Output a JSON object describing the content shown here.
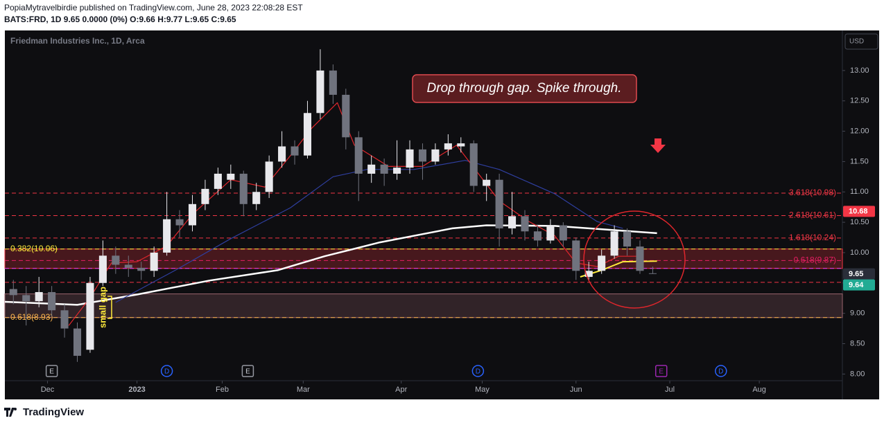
{
  "header": {
    "byline": "PopiaMytravelbirdie published on TradingView.com, June 28, 2023 22:08:28 EST",
    "symbol_line": "BATS:FRD, 1D 9.65 0.0000 (0%) O:9.66 H:9.77 L:9.65 C:9.65"
  },
  "footer": {
    "brand": "TradingView"
  },
  "chart_data": {
    "type": "candlestick",
    "title": "Friedman Industries Inc., 1D, Arca",
    "currency": "USD",
    "x": [
      -8,
      -5,
      -2,
      1,
      4,
      7,
      10,
      13,
      16,
      19,
      22,
      25,
      28,
      31,
      34,
      37,
      40,
      43,
      46,
      49,
      52,
      55,
      58,
      61,
      64,
      67,
      70,
      73,
      76,
      79,
      82,
      85,
      88,
      91,
      94,
      97,
      100,
      103,
      106,
      109,
      112,
      115,
      118,
      121,
      124,
      127,
      130,
      133,
      136,
      139,
      142
    ],
    "open": [
      9.4,
      9.3,
      9.2,
      9.35,
      9.05,
      8.75,
      8.4,
      9.5,
      9.95,
      9.8,
      9.75,
      9.7,
      10.0,
      10.55,
      10.45,
      10.8,
      11.05,
      11.2,
      11.3,
      10.8,
      11.0,
      11.5,
      11.75,
      11.6,
      12.3,
      13.0,
      12.6,
      11.9,
      11.3,
      11.45,
      11.3,
      11.4,
      11.7,
      11.5,
      11.7,
      11.75,
      11.8,
      11.1,
      11.2,
      10.4,
      10.6,
      10.35,
      10.2,
      10.45,
      10.2,
      9.6,
      9.7,
      9.95,
      10.35,
      10.1,
      9.66
    ],
    "high": [
      9.55,
      9.45,
      9.6,
      9.45,
      9.15,
      8.85,
      9.6,
      10.2,
      10.1,
      9.95,
      9.85,
      10.1,
      11.0,
      10.7,
      10.95,
      11.2,
      11.4,
      11.45,
      11.35,
      11.15,
      11.6,
      12.0,
      11.85,
      12.5,
      13.35,
      13.1,
      12.7,
      12.0,
      11.6,
      11.55,
      11.85,
      11.85,
      11.8,
      11.8,
      11.95,
      11.9,
      11.85,
      11.3,
      11.3,
      11.0,
      10.7,
      10.45,
      10.55,
      10.5,
      10.25,
      9.85,
      10.05,
      10.45,
      10.4,
      10.2,
      9.77
    ],
    "low": [
      9.15,
      8.8,
      9.1,
      8.95,
      8.6,
      8.2,
      8.35,
      9.45,
      9.65,
      9.6,
      9.55,
      9.6,
      9.95,
      10.25,
      10.35,
      10.7,
      10.95,
      11.05,
      10.6,
      10.7,
      10.9,
      11.4,
      11.45,
      11.55,
      12.2,
      12.45,
      11.7,
      10.85,
      11.15,
      11.1,
      11.2,
      11.3,
      11.2,
      11.45,
      11.6,
      11.65,
      11.0,
      10.85,
      10.1,
      10.3,
      10.2,
      10.1,
      10.15,
      10.1,
      9.55,
      9.55,
      9.65,
      9.9,
      9.95,
      9.65,
      9.65
    ],
    "close": [
      9.3,
      9.2,
      9.35,
      9.05,
      8.75,
      8.3,
      9.5,
      9.95,
      9.8,
      9.75,
      9.7,
      10.0,
      10.55,
      10.45,
      10.8,
      11.05,
      11.3,
      11.3,
      10.8,
      11.0,
      11.5,
      11.75,
      11.6,
      12.3,
      13.0,
      12.6,
      11.9,
      11.3,
      11.45,
      11.3,
      11.4,
      11.7,
      11.5,
      11.7,
      11.8,
      11.8,
      11.1,
      11.2,
      10.4,
      10.6,
      10.35,
      10.2,
      10.45,
      10.2,
      9.7,
      9.7,
      9.95,
      10.35,
      10.1,
      9.7,
      9.65
    ],
    "up_color": "#e8e8ec",
    "down_color": "#70737e",
    "lines": [
      {
        "color": "#ffffff",
        "width": 2.5,
        "x": [
          -10,
          7,
          21,
          38,
          54,
          65,
          78,
          95,
          103,
          119,
          135,
          143
        ],
        "values": [
          9.19,
          9.14,
          9.31,
          9.54,
          9.71,
          9.94,
          10.17,
          10.4,
          10.45,
          10.44,
          10.36,
          10.32
        ]
      },
      {
        "color": "#2f3fa0",
        "width": 1.2,
        "x": [
          16,
          30,
          43,
          57,
          67,
          75,
          86,
          98,
          106,
          119,
          129,
          135
        ],
        "values": [
          9.18,
          9.71,
          10.23,
          10.74,
          11.25,
          11.37,
          11.37,
          11.52,
          11.37,
          10.97,
          10.51,
          10.4
        ]
      },
      {
        "color": "#e0262c",
        "width": 1.2,
        "x": [
          5,
          10,
          15,
          21,
          28,
          34,
          43,
          51,
          57,
          62,
          68,
          72,
          80,
          88,
          96,
          101,
          106,
          113,
          119,
          124,
          129,
          134,
          139
        ],
        "values": [
          8.8,
          9.26,
          9.83,
          9.85,
          10.11,
          10.63,
          11.2,
          11.08,
          11.6,
          12.05,
          12.47,
          11.77,
          11.42,
          11.42,
          11.77,
          11.31,
          10.85,
          10.51,
          10.28,
          9.83,
          9.77,
          9.94,
          9.94
        ]
      },
      {
        "color": "#ffeb3b",
        "width": 2,
        "x": [
          125,
          130,
          135,
          143
        ],
        "values": [
          9.6,
          9.71,
          9.85,
          9.86
        ]
      }
    ],
    "levels": [
      {
        "value": 10.98,
        "label": "3.618(10.98)",
        "color": "#f23645",
        "side": "right"
      },
      {
        "value": 10.61,
        "label": "2.618(10.61)",
        "color": "#f23645",
        "side": "right"
      },
      {
        "value": 10.24,
        "label": "1.618(10.24)",
        "color": "#f23645",
        "side": "right"
      },
      {
        "value": 9.87,
        "label": "0.618(9.87)",
        "color": "#e91e63",
        "side": "right"
      },
      {
        "value": 9.74,
        "color": "#e040fb"
      },
      {
        "value": 9.51,
        "color": "#f23645"
      },
      {
        "value": 10.06,
        "label": "0.382(10.06)",
        "color": "#ffeb3b",
        "side": "left"
      },
      {
        "value": 8.93,
        "label": "0.618(8.93)",
        "color": "#ffb74d",
        "side": "left"
      }
    ],
    "zones": [
      {
        "top": 10.06,
        "bottom": 9.74,
        "color": "#f23645"
      },
      {
        "top": 9.32,
        "bottom": 8.93,
        "color": "#9c646e"
      }
    ],
    "price_tags": [
      {
        "value": 10.68,
        "color": "#f23645"
      },
      {
        "value": 9.65,
        "color": "#2a2e39"
      },
      {
        "value": 9.64,
        "color": "#22ab94"
      }
    ],
    "events": [
      {
        "x": 1,
        "label": "E",
        "color": "#9598a1"
      },
      {
        "x": 28,
        "label": "D",
        "color": "#2962ff"
      },
      {
        "x": 47,
        "label": "E",
        "color": "#9598a1"
      },
      {
        "x": 101,
        "label": "D",
        "color": "#2962ff"
      },
      {
        "x": 144,
        "label": "E",
        "color": "#9c27b0"
      },
      {
        "x": 158,
        "label": "D",
        "color": "#2962ff"
      }
    ],
    "annotations": {
      "callout": "Drop through gap. Spike through.",
      "gap_note": "small gap"
    },
    "xlim": [
      -10,
      186.5
    ],
    "ylim": [
      7.89,
      13.66
    ],
    "xticks": [
      {
        "value": 0,
        "label": "Dec"
      },
      {
        "value": 21,
        "label": "2023"
      },
      {
        "value": 41,
        "label": "Feb"
      },
      {
        "value": 60,
        "label": "Mar"
      },
      {
        "value": 83,
        "label": "Apr"
      },
      {
        "value": 102,
        "label": "May"
      },
      {
        "value": 124,
        "label": "Jun"
      },
      {
        "value": 146,
        "label": "Jul"
      },
      {
        "value": 167,
        "label": "Aug"
      }
    ],
    "yticks": [
      {
        "value": 8,
        "label": "8.00"
      },
      {
        "value": 8.5,
        "label": "8.50"
      },
      {
        "value": 9,
        "label": "9.00"
      },
      {
        "value": 9.5,
        "label": "9.50"
      },
      {
        "value": 10,
        "label": "10.00"
      },
      {
        "value": 10.5,
        "label": "10.50"
      },
      {
        "value": 11,
        "label": "11.00"
      },
      {
        "value": 11.5,
        "label": "11.50"
      },
      {
        "value": 12,
        "label": "12.00"
      },
      {
        "value": 12.5,
        "label": "12.50"
      },
      {
        "value": 13,
        "label": "13.00"
      }
    ],
    "grid": false
  }
}
